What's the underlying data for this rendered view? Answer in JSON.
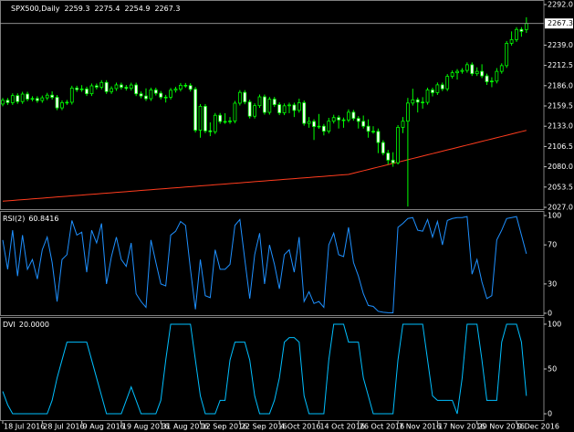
{
  "chart_data": [
    {
      "type": "candlestick",
      "title": "SPX500,Daily",
      "categories": [
        "18 Jul 2016",
        null,
        null,
        null,
        null,
        null,
        null,
        null,
        "28 Jul 2016",
        null,
        null,
        null,
        null,
        null,
        null,
        null,
        "9 Aug 2016",
        null,
        null,
        null,
        null,
        null,
        null,
        null,
        "19 Aug 2016",
        null,
        null,
        null,
        null,
        null,
        null,
        null,
        "31 Aug 2016",
        null,
        null,
        null,
        null,
        null,
        null,
        null,
        "12 Sep 2016",
        null,
        null,
        null,
        null,
        null,
        null,
        null,
        "22 Sep 2016",
        null,
        null,
        null,
        null,
        null,
        null,
        null,
        "4 Oct 2016",
        null,
        null,
        null,
        null,
        null,
        null,
        null,
        "14 Oct 2016",
        null,
        null,
        null,
        null,
        null,
        null,
        null,
        "26 Oct 2016",
        null,
        null,
        null,
        null,
        null,
        null,
        null,
        "7 Nov 2016",
        null,
        null,
        null,
        null,
        null,
        null,
        null,
        "17 Nov 2016",
        null,
        null,
        null,
        null,
        null,
        null,
        null,
        "29 Nov 2016",
        null,
        null,
        null,
        null,
        null,
        null,
        null,
        "9 Dec 2016",
        null,
        null
      ],
      "open": [
        2162.0,
        2166.9,
        2163.8,
        2173.0,
        2165.2,
        2175.0,
        2168.5,
        2169.2,
        2166.6,
        2170.1,
        2173.6,
        2170.8,
        2157.0,
        2163.8,
        2164.3,
        2182.9,
        2180.9,
        2181.7,
        2175.5,
        2185.8,
        2184.1,
        2190.2,
        2178.2,
        2182.2,
        2187.0,
        2183.9,
        2182.6,
        2186.9,
        2175.4,
        2172.5,
        2169.0,
        2180.4,
        2176.1,
        2171.0,
        2170.9,
        2180.0,
        2181.5,
        2186.5,
        2186.2,
        2181.3,
        2127.8,
        2159.0,
        2127.0,
        2125.8,
        2147.3,
        2139.2,
        2139.1,
        2139.8,
        2163.1,
        2177.2,
        2164.7,
        2146.1,
        2159.9,
        2171.4,
        2151.1,
        2168.3,
        2161.2,
        2150.5,
        2159.7,
        2160.8,
        2153.7,
        2163.7,
        2136.7,
        2139.2,
        2132.6,
        2133.0,
        2126.5,
        2139.6,
        2144.3,
        2141.3,
        2141.2,
        2151.3,
        2143.2,
        2139.4,
        2133.0,
        2126.4,
        2126.2,
        2111.7,
        2097.9,
        2088.7,
        2085.2,
        2131.5,
        2139.6,
        2163.3,
        2167.5,
        2164.5,
        2164.2,
        2180.4,
        2176.9,
        2187.1,
        2181.9,
        2198.2,
        2202.9,
        2204.7,
        2206.0,
        2213.4,
        2201.7,
        2204.7,
        2198.8,
        2191.1,
        2192.0,
        2204.7,
        2212.2,
        2241.4,
        2246.2,
        2259.5,
        2259.3
      ],
      "high": [
        2169.9,
        2169.9,
        2176.0,
        2176.0,
        2178.0,
        2178.0,
        2172.2,
        2172.2,
        2173.1,
        2176.6,
        2178.6,
        2173.8,
        2166.8,
        2167.3,
        2185.9,
        2185.9,
        2186.7,
        2184.7,
        2188.8,
        2188.8,
        2193.2,
        2193.2,
        2185.2,
        2190.0,
        2190.0,
        2186.9,
        2189.9,
        2189.9,
        2178.4,
        2182.5,
        2183.4,
        2183.4,
        2179.1,
        2174.0,
        2183.0,
        2184.5,
        2189.5,
        2189.5,
        2189.2,
        2184.3,
        2162.0,
        2162.0,
        2138.0,
        2150.3,
        2150.3,
        2150.0,
        2145.0,
        2166.1,
        2180.2,
        2180.2,
        2167.7,
        2162.9,
        2174.4,
        2174.4,
        2171.3,
        2171.3,
        2164.2,
        2162.7,
        2163.8,
        2163.8,
        2169.0,
        2166.7,
        2145.0,
        2142.2,
        2149.0,
        2136.0,
        2144.0,
        2148.0,
        2147.3,
        2144.3,
        2155.0,
        2154.3,
        2146.2,
        2147.0,
        2142.0,
        2133.0,
        2130.0,
        2114.7,
        2102.0,
        2099.0,
        2134.5,
        2145.0,
        2170.0,
        2182.0,
        2170.5,
        2171.0,
        2183.4,
        2183.4,
        2190.1,
        2190.1,
        2201.2,
        2205.9,
        2207.7,
        2209.0,
        2216.4,
        2216.4,
        2210.0,
        2214.0,
        2201.8,
        2197.0,
        2209.0,
        2215.2,
        2244.4,
        2257.0,
        2262.5,
        2262.5,
        2275.4
      ],
      "low": [
        2159.0,
        2160.8,
        2160.8,
        2162.2,
        2162.2,
        2165.5,
        2165.5,
        2163.6,
        2163.6,
        2167.1,
        2167.8,
        2154.0,
        2154.0,
        2160.8,
        2161.3,
        2177.9,
        2177.9,
        2172.5,
        2172.5,
        2181.1,
        2181.1,
        2175.2,
        2175.2,
        2179.2,
        2180.9,
        2179.6,
        2179.6,
        2172.4,
        2169.5,
        2166.0,
        2166.0,
        2173.1,
        2168.0,
        2164.0,
        2167.9,
        2177.0,
        2178.5,
        2183.2,
        2178.3,
        2124.8,
        2118.0,
        2124.0,
        2120.0,
        2122.8,
        2136.2,
        2136.1,
        2136.1,
        2136.8,
        2160.1,
        2161.7,
        2143.1,
        2143.1,
        2156.9,
        2148.1,
        2148.1,
        2158.2,
        2147.5,
        2147.5,
        2150.0,
        2145.0,
        2150.7,
        2133.7,
        2131.0,
        2115.0,
        2129.6,
        2121.0,
        2123.5,
        2136.6,
        2130.0,
        2131.0,
        2138.2,
        2140.2,
        2130.0,
        2130.0,
        2118.0,
        2123.2,
        2097.8,
        2094.9,
        2083.0,
        2080.0,
        2083.0,
        2124.0,
        2028.0,
        2160.0,
        2151.0,
        2156.0,
        2161.2,
        2172.0,
        2173.9,
        2178.9,
        2178.9,
        2195.2,
        2194.0,
        2201.7,
        2203.0,
        2198.7,
        2198.7,
        2195.8,
        2187.0,
        2184.0,
        2189.0,
        2201.7,
        2209.2,
        2238.4,
        2243.2,
        2250.0,
        2254.9
      ],
      "close": [
        2166.9,
        2163.8,
        2173.0,
        2165.2,
        2175.0,
        2168.5,
        2169.2,
        2166.6,
        2170.1,
        2173.6,
        2170.8,
        2157.0,
        2163.8,
        2164.3,
        2182.9,
        2180.9,
        2181.7,
        2175.5,
        2185.8,
        2184.1,
        2190.2,
        2178.2,
        2182.2,
        2187.0,
        2183.9,
        2182.6,
        2186.9,
        2175.4,
        2172.5,
        2169.0,
        2180.4,
        2176.1,
        2171.0,
        2170.9,
        2180.0,
        2181.5,
        2186.5,
        2186.2,
        2181.3,
        2127.8,
        2159.0,
        2127.0,
        2125.8,
        2147.3,
        2139.2,
        2139.1,
        2139.8,
        2163.1,
        2177.2,
        2164.7,
        2146.1,
        2159.9,
        2171.4,
        2151.1,
        2168.3,
        2161.2,
        2150.5,
        2159.7,
        2160.8,
        2153.7,
        2163.7,
        2136.7,
        2139.2,
        2132.6,
        2133.0,
        2126.5,
        2139.6,
        2144.3,
        2141.3,
        2141.2,
        2151.3,
        2143.2,
        2139.4,
        2133.0,
        2126.4,
        2126.2,
        2111.7,
        2097.9,
        2088.7,
        2085.2,
        2131.5,
        2139.6,
        2163.3,
        2167.5,
        2164.5,
        2164.2,
        2180.4,
        2176.9,
        2187.1,
        2181.9,
        2198.2,
        2202.9,
        2204.7,
        2206.0,
        2213.4,
        2201.7,
        2204.7,
        2198.8,
        2191.1,
        2192.0,
        2204.7,
        2212.2,
        2241.4,
        2246.2,
        2259.5,
        2256.9,
        2267.3
      ],
      "color_up": "#00ff00",
      "color_down": "#00ff00",
      "fill_up": "#000000",
      "fill_down": "#ffffff",
      "overlay": {
        "color": "#ff3c1e",
        "values": [
          2035,
          2035.5,
          2036,
          2036.5,
          2037,
          2037.5,
          2038,
          2038.5,
          2039,
          2039.5,
          2040,
          2040.5,
          2041,
          2041.5,
          2042,
          2042.5,
          2043,
          2043.5,
          2044,
          2044.5,
          2045,
          2045.5,
          2046,
          2046.5,
          2047,
          2047.5,
          2048,
          2048.5,
          2049,
          2049.5,
          2050,
          2050.5,
          2051,
          2051.5,
          2052,
          2052.5,
          2053,
          2053.5,
          2054,
          2054.5,
          2055,
          2055.5,
          2056,
          2056.5,
          2057,
          2057.5,
          2058,
          2058.5,
          2059,
          2059.5,
          2060,
          2060.5,
          2061,
          2061.5,
          2062,
          2062.5,
          2063,
          2063.5,
          2064,
          2064.5,
          2065,
          2065.5,
          2066,
          2066.5,
          2067,
          2067.5,
          2068,
          2068.5,
          2069,
          2069.5,
          2070,
          2071.6,
          2073.2,
          2074.8,
          2076.4,
          2078,
          2079.6,
          2081.2,
          2082.8,
          2084.4,
          2086,
          2087.6,
          2089.2,
          2090.8,
          2092.4,
          2094,
          2095.6,
          2097.2,
          2098.8,
          2100.4,
          2102,
          2103.6,
          2105.2,
          2106.8,
          2108.4,
          2110,
          2111.6,
          2113.2,
          2114.8,
          2116.4,
          2118,
          2119.6,
          2121.2,
          2122.8,
          2124.4,
          2126,
          2127.6
        ]
      },
      "ylim": [
        2024.6,
        2296.8
      ],
      "yticks": [
        {
          "value": 2292.0,
          "label": "2292.0"
        },
        {
          "value": 2239.0,
          "label": "2239.0"
        },
        2212.5,
        {
          "value": 2186.0,
          "label": "2186.0"
        },
        2159.5,
        {
          "value": 2133.0,
          "label": "2133.0"
        },
        2106.5,
        {
          "value": 2080.0,
          "label": "2080.0"
        },
        2053.5,
        {
          "value": 2027.0,
          "label": "2027.0"
        }
      ],
      "grid": false
    },
    {
      "type": "line",
      "title": "RSI(2)",
      "color": "#1e90ff",
      "values": [
        75,
        45,
        85,
        38,
        80,
        45,
        55,
        35,
        65,
        78,
        52,
        12,
        55,
        60,
        95,
        80,
        83,
        42,
        85,
        72,
        92,
        30,
        58,
        78,
        55,
        48,
        72,
        20,
        12,
        6,
        75,
        52,
        30,
        28,
        80,
        84,
        94,
        90,
        45,
        4,
        55,
        18,
        16,
        65,
        45,
        45,
        50,
        90,
        96,
        55,
        15,
        60,
        82,
        30,
        70,
        50,
        25,
        60,
        65,
        42,
        78,
        12,
        22,
        10,
        12,
        6,
        70,
        82,
        60,
        58,
        88,
        52,
        38,
        20,
        8,
        7,
        2,
        1,
        0.5,
        0.4,
        88,
        92,
        97,
        98,
        85,
        84,
        96,
        78,
        94,
        70,
        95,
        97,
        98,
        98,
        99,
        40,
        55,
        32,
        15,
        18,
        75,
        85,
        97,
        98,
        99,
        80,
        60.8416
      ],
      "ylim": [
        -1.9,
        103.8
      ],
      "yticks": [
        100,
        70,
        30,
        0
      ],
      "grid": false
    },
    {
      "type": "line",
      "title": "DVI",
      "color": "#00bfff",
      "values": [
        25,
        10,
        0,
        0,
        0,
        0,
        0,
        0,
        0,
        0,
        15,
        40,
        60,
        80,
        80,
        80,
        80,
        80,
        60,
        40,
        20,
        0,
        0,
        0,
        0,
        15,
        30,
        15,
        0,
        0,
        0,
        0,
        15,
        60,
        100,
        100,
        100,
        100,
        100,
        60,
        20,
        0,
        0,
        0,
        15,
        15,
        60,
        80,
        80,
        80,
        60,
        20,
        0,
        0,
        0,
        15,
        40,
        80,
        85,
        85,
        80,
        20,
        0,
        0,
        0,
        0,
        60,
        100,
        100,
        100,
        80,
        80,
        80,
        40,
        20,
        0,
        0,
        0,
        0,
        0,
        60,
        100,
        100,
        100,
        100,
        100,
        60,
        20,
        15,
        15,
        15,
        15,
        0,
        40,
        100,
        100,
        100,
        60,
        15,
        15,
        15,
        80,
        100,
        100,
        100,
        80,
        20
      ],
      "value_labels": [
        null,
        null,
        null,
        null,
        null,
        null,
        null,
        null,
        null,
        null,
        null,
        null,
        null,
        null,
        null,
        null,
        null,
        null,
        null,
        null,
        null,
        null,
        null,
        null,
        null,
        null,
        null,
        null,
        null,
        null,
        null,
        null,
        null,
        null,
        null,
        null,
        null,
        null,
        null,
        null,
        null,
        null,
        null,
        null,
        null,
        null,
        null,
        null,
        null,
        null,
        null,
        null,
        null,
        null,
        null,
        null,
        null,
        null,
        null,
        null,
        null,
        null,
        null,
        null,
        null,
        null,
        null,
        null,
        null,
        null,
        null,
        null,
        null,
        null,
        null,
        null,
        null,
        null,
        null,
        null,
        null,
        null,
        null,
        null,
        null,
        null,
        null,
        null,
        null,
        null,
        null,
        null,
        null,
        null,
        null,
        null,
        null,
        null,
        null,
        null,
        null,
        null,
        null,
        null,
        null,
        null,
        "20.0000"
      ],
      "ylim": [
        -7.1,
        107.1
      ],
      "yticks": [
        100,
        50,
        0
      ],
      "grid": false
    }
  ]
}
